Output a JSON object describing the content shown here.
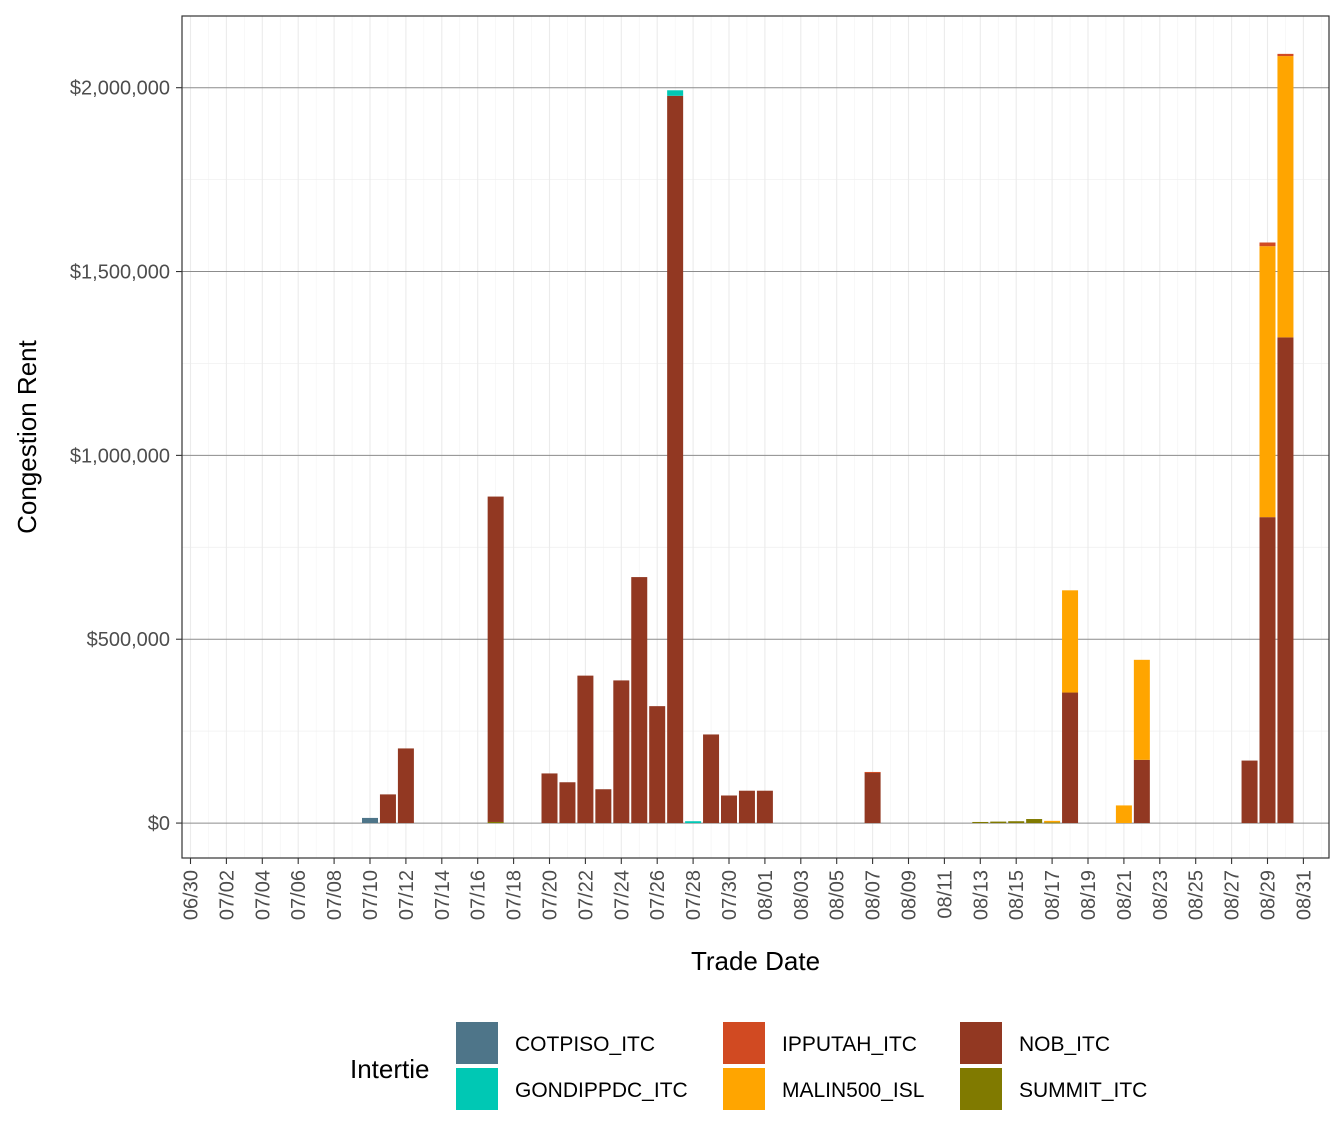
{
  "chart_data": {
    "type": "bar",
    "stacked": true,
    "xlabel": "Trade Date",
    "ylabel": "Congestion Rent",
    "ylim": [
      -95000,
      2195000
    ],
    "y_ticks": [
      0,
      500000,
      1000000,
      1500000,
      2000000
    ],
    "y_tick_labels": [
      "$0",
      "$500,000",
      "$1,000,000",
      "$1,500,000",
      "$2,000,000"
    ],
    "x_start": "06/30",
    "x_tick_labels": [
      "06/30",
      "07/02",
      "07/04",
      "07/06",
      "07/08",
      "07/10",
      "07/12",
      "07/14",
      "07/16",
      "07/18",
      "07/20",
      "07/22",
      "07/24",
      "07/26",
      "07/28",
      "07/30",
      "08/01",
      "08/03",
      "08/05",
      "08/07",
      "08/09",
      "08/11",
      "08/13",
      "08/15",
      "08/17",
      "08/19",
      "08/21",
      "08/23",
      "08/25",
      "08/27",
      "08/29",
      "08/31"
    ],
    "grid": true,
    "legend": {
      "title": "Intertie",
      "position": "bottom",
      "entries": [
        {
          "name": "COTPISO_ITC",
          "color": "#4e7589"
        },
        {
          "name": "GONDIPPDC_ITC",
          "color": "#00c8b4"
        },
        {
          "name": "IPPUTAH_ITC",
          "color": "#d14a22"
        },
        {
          "name": "MALIN500_ISL",
          "color": "#ffa500"
        },
        {
          "name": "NOB_ITC",
          "color": "#923822"
        },
        {
          "name": "SUMMIT_ITC",
          "color": "#807a00"
        }
      ]
    },
    "series": [
      {
        "name": "COTPISO_ITC",
        "color": "#4e7589",
        "points": [
          {
            "date": "07/10",
            "value": 14000
          }
        ]
      },
      {
        "name": "GONDIPPDC_ITC",
        "color": "#00c8b4",
        "points": [
          {
            "date": "07/27",
            "value": 15000
          },
          {
            "date": "07/28",
            "value": 5000
          }
        ]
      },
      {
        "name": "IPPUTAH_ITC",
        "color": "#d14a22",
        "points": [
          {
            "date": "08/07",
            "value": 2000
          },
          {
            "date": "08/29",
            "value": 10000
          },
          {
            "date": "08/30",
            "value": 6000
          }
        ]
      },
      {
        "name": "MALIN500_ISL",
        "color": "#ffa500",
        "points": [
          {
            "date": "08/17",
            "value": 4000
          },
          {
            "date": "08/18",
            "value": 278000
          },
          {
            "date": "08/21",
            "value": 48000
          },
          {
            "date": "08/22",
            "value": 272000
          },
          {
            "date": "08/29",
            "value": 737000
          },
          {
            "date": "08/30",
            "value": 765000
          }
        ]
      },
      {
        "name": "NOB_ITC",
        "color": "#923822",
        "points": [
          {
            "date": "07/11",
            "value": 78000
          },
          {
            "date": "07/12",
            "value": 203000
          },
          {
            "date": "07/17",
            "value": 885000
          },
          {
            "date": "07/20",
            "value": 135000
          },
          {
            "date": "07/21",
            "value": 111000
          },
          {
            "date": "07/22",
            "value": 401000
          },
          {
            "date": "07/23",
            "value": 92000
          },
          {
            "date": "07/24",
            "value": 388000
          },
          {
            "date": "07/25",
            "value": 669000
          },
          {
            "date": "07/26",
            "value": 318000
          },
          {
            "date": "07/27",
            "value": 1978000
          },
          {
            "date": "07/29",
            "value": 241000
          },
          {
            "date": "07/30",
            "value": 75000
          },
          {
            "date": "07/31",
            "value": 88000
          },
          {
            "date": "08/01",
            "value": 88000
          },
          {
            "date": "08/07",
            "value": 137000
          },
          {
            "date": "08/18",
            "value": 355000
          },
          {
            "date": "08/22",
            "value": 172000
          },
          {
            "date": "08/28",
            "value": 170000
          },
          {
            "date": "08/29",
            "value": 832000
          },
          {
            "date": "08/30",
            "value": 1321000
          }
        ]
      },
      {
        "name": "SUMMIT_ITC",
        "color": "#807a00",
        "points": [
          {
            "date": "07/17",
            "value": 3000
          },
          {
            "date": "08/13",
            "value": 3000
          },
          {
            "date": "08/14",
            "value": 4000
          },
          {
            "date": "08/15",
            "value": 5000
          },
          {
            "date": "08/16",
            "value": 11000
          },
          {
            "date": "08/17",
            "value": 2000
          }
        ]
      }
    ]
  }
}
